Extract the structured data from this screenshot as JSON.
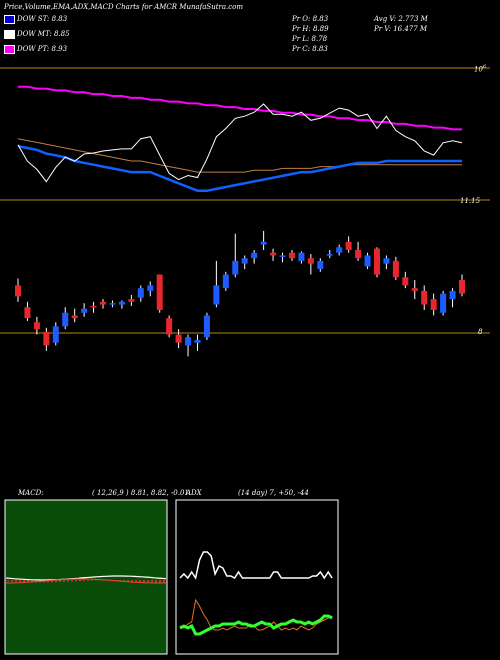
{
  "page_title": "Price,Volume,EMA,ADX,MACD Charts for AMCR MunafaSutra.com",
  "legend": [
    {
      "label": "DOW ST: 8.83",
      "color": "#0000cc"
    },
    {
      "label": "DOW MT: 8.85",
      "color": "#ffffff"
    },
    {
      "label": "DOW PT: 8.93",
      "color": "#ff00ff"
    }
  ],
  "stats": {
    "pr_o": "Pr   O: 8.83",
    "pr_h": "Pr   H: 8.89",
    "pr_l": "Pr   L: 8.78",
    "pr_c": "Pr   C: 8.83",
    "avg_v": "Avg V: 2.773  M",
    "pr_v": "Pr   V: 16.477  M"
  },
  "ema_panel": {
    "scale_label": "10",
    "scale_sup": "6",
    "price_label": "11.15"
  },
  "candle_panel": {
    "right_label": "8"
  },
  "macd": {
    "label": "MACD:",
    "params": "( 12,26,9 ) 8.81, 8.82, -0.01"
  },
  "adx": {
    "label": "ADX",
    "params": "(14  day) 7, +50, -44"
  },
  "colors": {
    "up": "#1e5cff",
    "down": "#e8262e",
    "macd_bg": "#0a4d0a",
    "ema_short": "#1060ff",
    "ema_long": "#ff00ff"
  },
  "chart_data": {
    "type": "candlestick",
    "ohlc": [
      [
        9.22,
        9.27,
        9.1,
        9.14
      ],
      [
        9.06,
        9.1,
        8.96,
        8.98
      ],
      [
        8.95,
        8.99,
        8.86,
        8.9
      ],
      [
        8.88,
        8.91,
        8.74,
        8.78
      ],
      [
        8.8,
        8.95,
        8.78,
        8.92
      ],
      [
        8.92,
        9.06,
        8.9,
        9.02
      ],
      [
        9.0,
        9.05,
        8.95,
        8.98
      ],
      [
        9.02,
        9.09,
        8.99,
        9.05
      ],
      [
        9.07,
        9.1,
        9.02,
        9.06
      ],
      [
        9.1,
        9.12,
        9.05,
        9.08
      ],
      [
        9.09,
        9.11,
        9.06,
        9.09
      ],
      [
        9.08,
        9.11,
        9.05,
        9.1
      ],
      [
        9.12,
        9.15,
        9.07,
        9.1
      ],
      [
        9.13,
        9.22,
        9.1,
        9.2
      ],
      [
        9.18,
        9.25,
        9.14,
        9.22
      ],
      [
        9.3,
        9.3,
        9.02,
        9.04
      ],
      [
        8.98,
        9.0,
        8.84,
        8.86
      ],
      [
        8.86,
        8.9,
        8.76,
        8.8
      ],
      [
        8.78,
        8.86,
        8.7,
        8.84
      ],
      [
        8.8,
        8.86,
        8.74,
        8.82
      ],
      [
        8.84,
        9.02,
        8.82,
        9.0
      ],
      [
        9.08,
        9.4,
        9.06,
        9.22
      ],
      [
        9.2,
        9.32,
        9.18,
        9.3
      ],
      [
        9.3,
        9.6,
        9.28,
        9.4
      ],
      [
        9.38,
        9.44,
        9.34,
        9.42
      ],
      [
        9.42,
        9.48,
        9.38,
        9.46
      ],
      [
        9.52,
        9.62,
        9.48,
        9.54
      ],
      [
        9.46,
        9.49,
        9.4,
        9.44
      ],
      [
        9.44,
        9.46,
        9.39,
        9.44
      ],
      [
        9.46,
        9.48,
        9.4,
        9.42
      ],
      [
        9.4,
        9.47,
        9.38,
        9.46
      ],
      [
        9.42,
        9.45,
        9.3,
        9.38
      ],
      [
        9.34,
        9.42,
        9.32,
        9.4
      ],
      [
        9.44,
        9.48,
        9.42,
        9.45
      ],
      [
        9.46,
        9.52,
        9.44,
        9.5
      ],
      [
        9.54,
        9.58,
        9.46,
        9.48
      ],
      [
        9.48,
        9.54,
        9.4,
        9.42
      ],
      [
        9.36,
        9.46,
        9.34,
        9.44
      ],
      [
        9.49,
        9.5,
        9.28,
        9.3
      ],
      [
        9.38,
        9.44,
        9.34,
        9.42
      ],
      [
        9.4,
        9.43,
        9.26,
        9.28
      ],
      [
        9.28,
        9.32,
        9.2,
        9.22
      ],
      [
        9.2,
        9.26,
        9.12,
        9.18
      ],
      [
        9.18,
        9.22,
        9.04,
        9.08
      ],
      [
        9.12,
        9.16,
        9.0,
        9.04
      ],
      [
        9.02,
        9.18,
        9.0,
        9.16
      ],
      [
        9.12,
        9.2,
        9.06,
        9.18
      ],
      [
        9.26,
        9.3,
        9.14,
        9.16
      ]
    ],
    "ema_short": [
      9.14,
      9.13,
      9.12,
      9.1,
      9.09,
      9.08,
      9.06,
      9.05,
      9.04,
      9.03,
      9.02,
      9.01,
      9.0,
      9.0,
      9.0,
      8.98,
      8.96,
      8.94,
      8.92,
      8.9,
      8.9,
      8.91,
      8.92,
      8.93,
      8.94,
      8.95,
      8.96,
      8.97,
      8.98,
      8.99,
      9.0,
      9.0,
      9.01,
      9.02,
      9.03,
      9.04,
      9.05,
      9.05,
      9.05,
      9.06,
      9.06,
      9.06,
      9.06,
      9.06,
      9.06,
      9.06,
      9.06,
      9.06
    ],
    "ema_mid": [
      9.18,
      9.17,
      9.16,
      9.15,
      9.14,
      9.13,
      9.12,
      9.11,
      9.1,
      9.09,
      9.08,
      9.07,
      9.06,
      9.06,
      9.05,
      9.04,
      9.03,
      9.02,
      9.01,
      9.0,
      9.0,
      9.0,
      9.0,
      9.0,
      9.0,
      9.01,
      9.01,
      9.01,
      9.02,
      9.02,
      9.02,
      9.02,
      9.03,
      9.03,
      9.03,
      9.04,
      9.04,
      9.04,
      9.04,
      9.04,
      9.04,
      9.04,
      9.04,
      9.04,
      9.04,
      9.04,
      9.04,
      9.04
    ],
    "ema_long": [
      9.46,
      9.46,
      9.45,
      9.45,
      9.44,
      9.44,
      9.43,
      9.43,
      9.42,
      9.42,
      9.41,
      9.41,
      9.4,
      9.4,
      9.39,
      9.39,
      9.38,
      9.38,
      9.37,
      9.37,
      9.36,
      9.36,
      9.35,
      9.35,
      9.34,
      9.34,
      9.33,
      9.33,
      9.32,
      9.32,
      9.31,
      9.31,
      9.3,
      9.3,
      9.29,
      9.29,
      9.28,
      9.28,
      9.27,
      9.27,
      9.26,
      9.26,
      9.25,
      9.25,
      9.24,
      9.24,
      9.23,
      9.23
    ],
    "ylim": [
      8.6,
      9.7
    ]
  }
}
